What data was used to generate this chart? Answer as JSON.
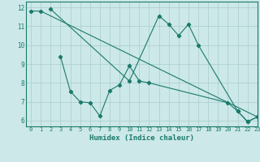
{
  "bg_color": "#cce8e8",
  "line_color": "#1a7a6a",
  "grid_color": "#aacccc",
  "xlabel": "Humidex (Indice chaleur)",
  "xlim": [
    -0.5,
    23
  ],
  "ylim": [
    5.7,
    12.3
  ],
  "yticks": [
    6,
    7,
    8,
    9,
    10,
    11,
    12
  ],
  "xticks": [
    0,
    1,
    2,
    3,
    4,
    5,
    6,
    7,
    8,
    9,
    10,
    11,
    12,
    13,
    14,
    15,
    16,
    17,
    18,
    19,
    20,
    21,
    22,
    23
  ],
  "line1_x": [
    0,
    1,
    23
  ],
  "line1_y": [
    11.8,
    11.8,
    6.2
  ],
  "line2_x": [
    2,
    10,
    13,
    14,
    15,
    16,
    17,
    21,
    22,
    23
  ],
  "line2_y": [
    11.9,
    8.1,
    11.55,
    11.1,
    10.5,
    11.1,
    10.0,
    6.5,
    5.95,
    6.2
  ],
  "line3_x": [
    3,
    4,
    5,
    6,
    7,
    8,
    9,
    10,
    11,
    12,
    20,
    21,
    22,
    23
  ],
  "line3_y": [
    9.4,
    7.55,
    7.0,
    6.95,
    6.25,
    7.6,
    7.9,
    8.9,
    8.1,
    8.0,
    6.95,
    6.5,
    5.95,
    6.2
  ]
}
